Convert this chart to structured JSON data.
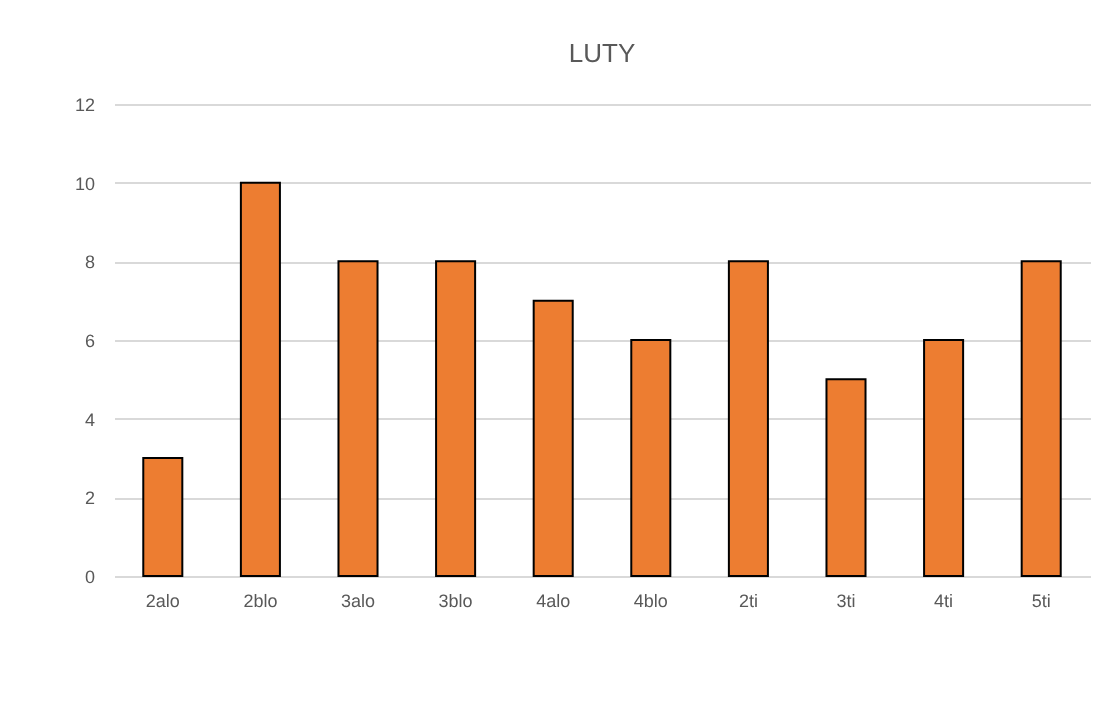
{
  "chart_data": {
    "type": "bar",
    "title": "LUTY",
    "categories": [
      "2alo",
      "2blo",
      "3alo",
      "3blo",
      "4alo",
      "4blo",
      "2ti",
      "3ti",
      "4ti",
      "5ti"
    ],
    "values": [
      3,
      10,
      8,
      8,
      7,
      6,
      8,
      5,
      6,
      8
    ],
    "color": "#ed7d31",
    "ylim": [
      0,
      12
    ],
    "yticks": [
      0,
      2,
      4,
      6,
      8,
      10,
      12
    ],
    "grid": "y"
  }
}
